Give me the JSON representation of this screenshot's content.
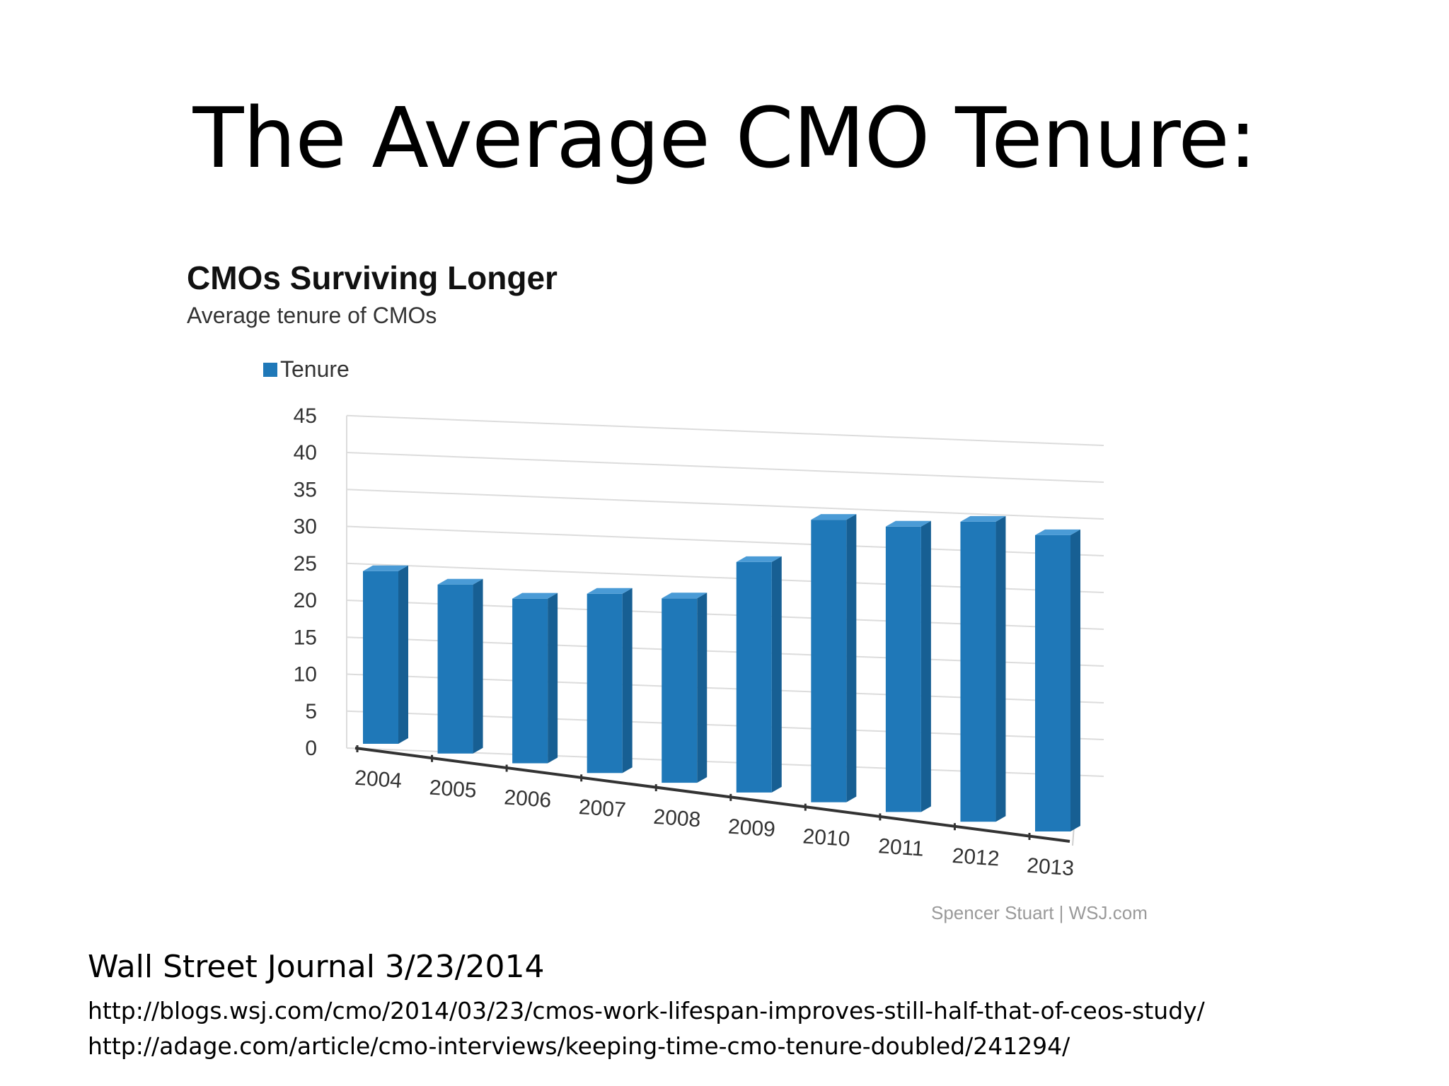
{
  "slide": {
    "title": "The Average CMO Tenure:",
    "source_line": "Wall Street Journal 3/23/2014",
    "links": [
      "http://blogs.wsj.com/cmo/2014/03/23/cmos-work-lifespan-improves-still-half-that-of-ceos-study/",
      "http://adage.com/article/cmo-interviews/keeping-time-cmo-tenure-doubled/241294/"
    ]
  },
  "chart_data": {
    "type": "bar",
    "title": "CMOs Surviving Longer",
    "subtitle": "Average tenure of CMOs",
    "credit": "Spencer Stuart | WSJ.com",
    "legend_position": "top-left",
    "grid": true,
    "categories": [
      "2004",
      "2005",
      "2006",
      "2007",
      "2008",
      "2009",
      "2010",
      "2011",
      "2012",
      "2013"
    ],
    "series": [
      {
        "name": "Tenure",
        "values": [
          23.6,
          23.1,
          22.5,
          24.5,
          25.2,
          31.5,
          38.6,
          39.0,
          41.0,
          40.5
        ],
        "color": "#1f78b8"
      }
    ],
    "yticks": [
      "0",
      "5",
      "10",
      "15",
      "20",
      "25",
      "30",
      "35",
      "40",
      "45"
    ],
    "ylim": [
      0,
      45
    ]
  }
}
